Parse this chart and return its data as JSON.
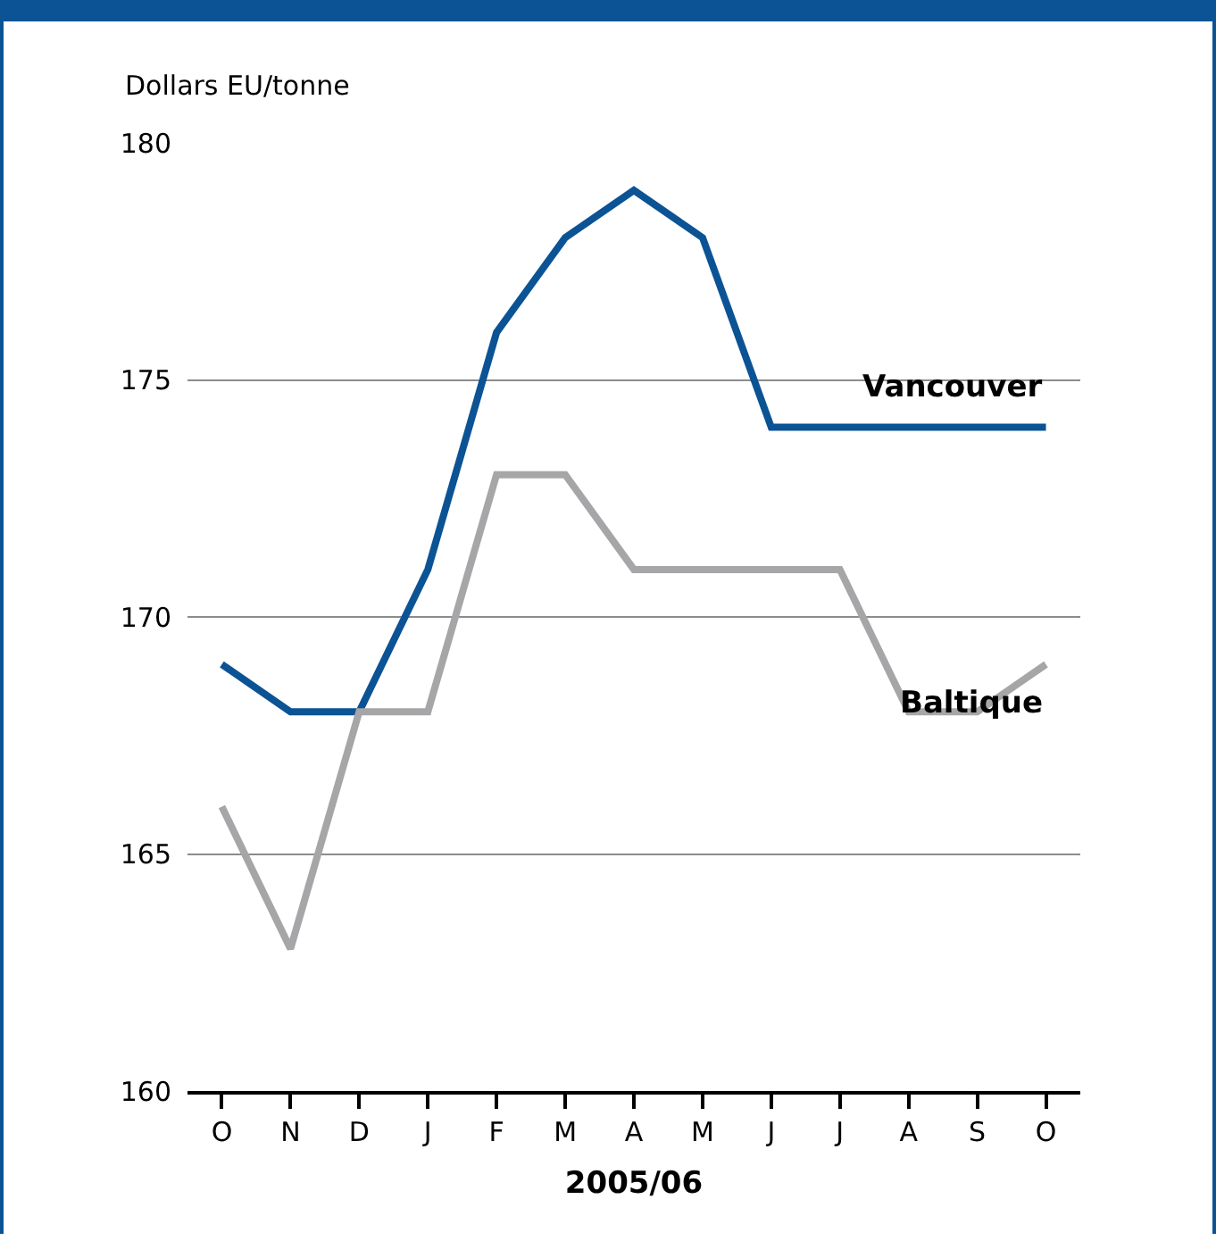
{
  "chart_data": {
    "type": "line",
    "ylabel": "Dollars EU/tonne",
    "xlabel": "2005/06",
    "categories": [
      "O",
      "N",
      "D",
      "J",
      "F",
      "M",
      "A",
      "M",
      "J",
      "J",
      "A",
      "S",
      "O"
    ],
    "series": [
      {
        "name": "Vancouver",
        "color": "#0b5394",
        "values": [
          169,
          168,
          168,
          171,
          176,
          178,
          179,
          178,
          174,
          174,
          174,
          174,
          174
        ]
      },
      {
        "name": "Baltique",
        "color": "#a6a6a8",
        "values": [
          166,
          163,
          168,
          168,
          173,
          173,
          171,
          171,
          171,
          171,
          168,
          168,
          169
        ]
      }
    ],
    "ylim": [
      160,
      180
    ],
    "yticks": [
      160,
      165,
      170,
      175,
      180
    ],
    "grid": "y",
    "legend": false,
    "marker": "none",
    "line_style": "solid"
  }
}
